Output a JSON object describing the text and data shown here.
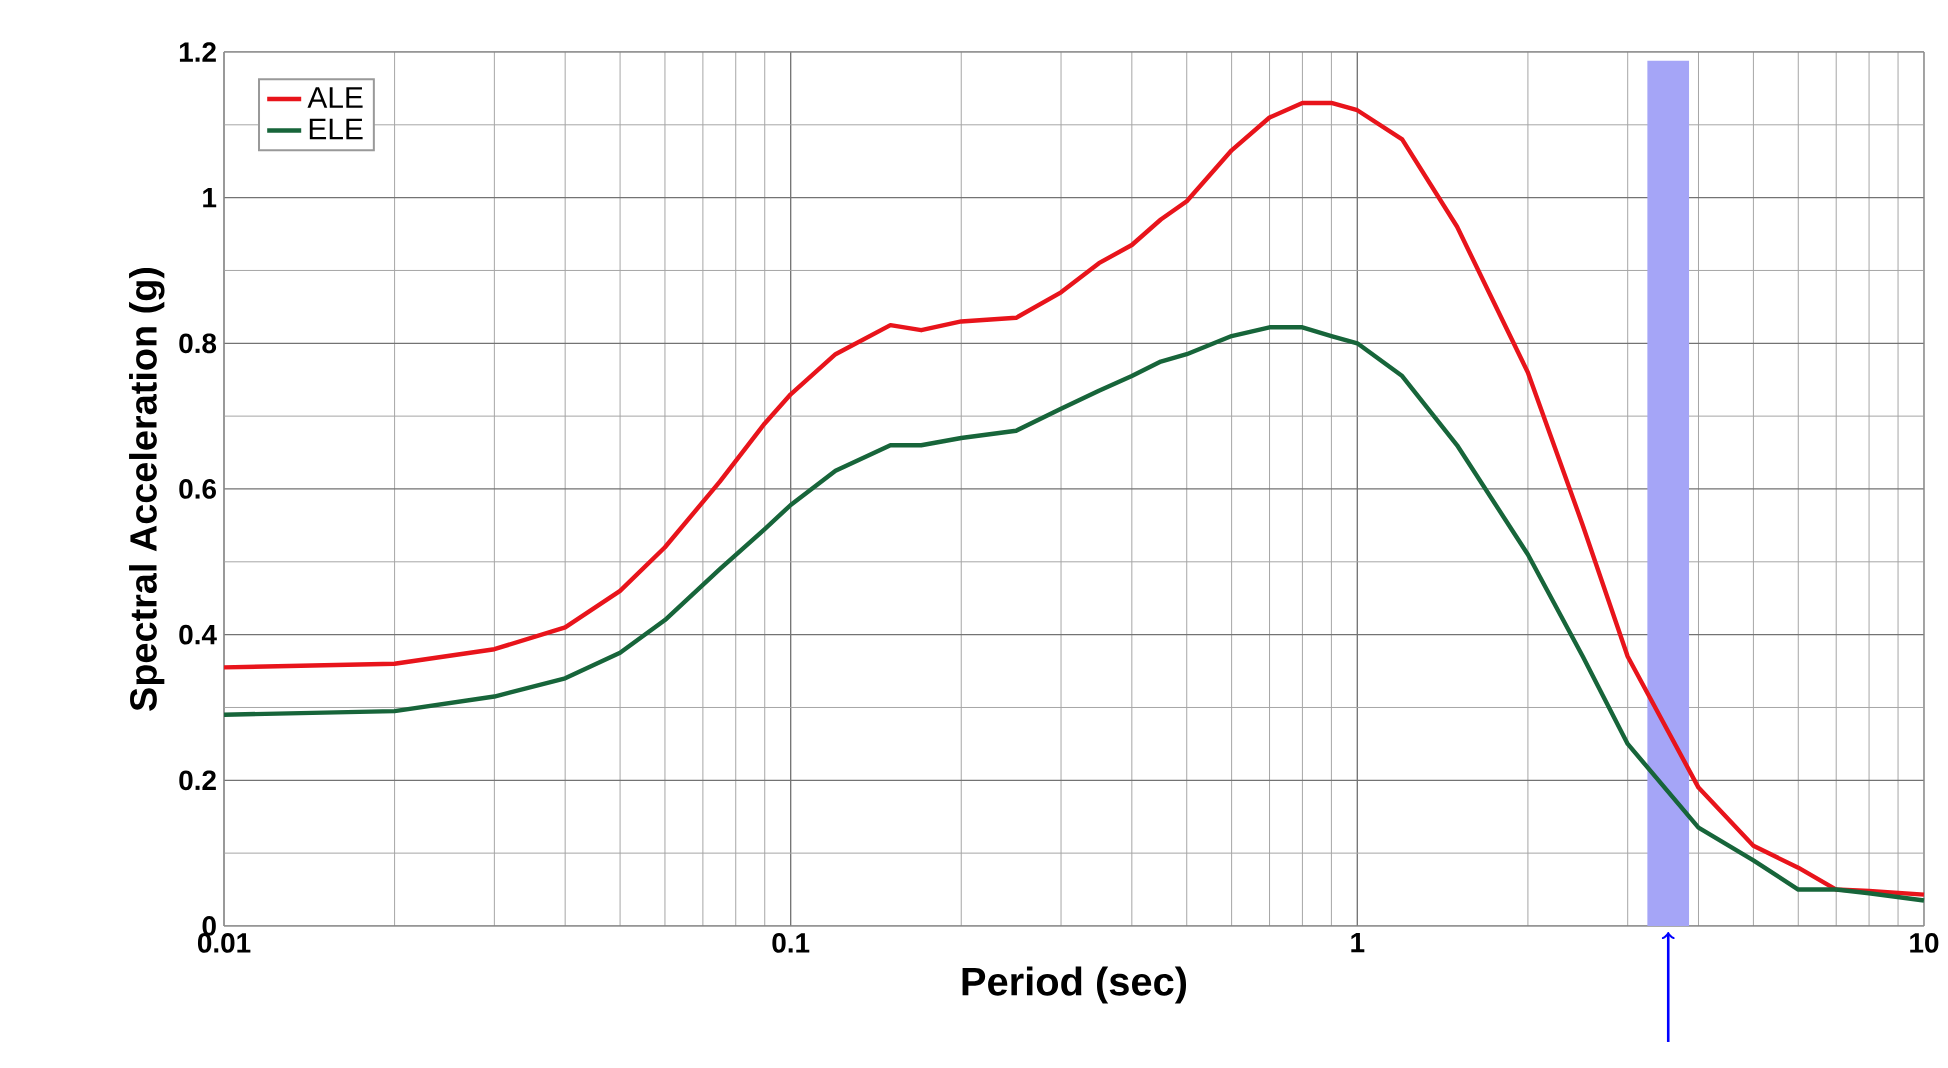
{
  "chart_data": {
    "type": "line",
    "xlabel": "Period (sec)",
    "ylabel": "Spectral Acceleration (g)",
    "log": "x",
    "grid": true,
    "legend": "top left",
    "line_style": "solid",
    "marker": "none",
    "xlim": [
      0.01,
      10
    ],
    "xticks": [
      0.01,
      0.1,
      1,
      10
    ],
    "ylim": [
      0,
      1.2
    ],
    "yticks": [
      0,
      0.2,
      0.4,
      0.6,
      0.8,
      1,
      1.2
    ],
    "x": [
      0.01,
      0.02,
      0.03,
      0.04,
      0.05,
      0.06,
      0.075,
      0.09,
      0.1,
      0.12,
      0.15,
      0.17,
      0.2,
      0.25,
      0.3,
      0.35,
      0.4,
      0.45,
      0.5,
      0.6,
      0.7,
      0.8,
      0.9,
      1.0,
      1.2,
      1.5,
      2,
      2.5,
      3,
      4,
      5,
      6,
      7,
      8,
      10
    ],
    "series": [
      {
        "name": "ALE",
        "color": "#e8141b",
        "values": [
          0.355,
          0.36,
          0.38,
          0.41,
          0.46,
          0.52,
          0.61,
          0.69,
          0.73,
          0.785,
          0.825,
          0.818,
          0.83,
          0.835,
          0.87,
          0.91,
          0.935,
          0.97,
          0.995,
          1.065,
          1.11,
          1.13,
          1.13,
          1.12,
          1.08,
          0.96,
          0.76,
          0.55,
          0.37,
          0.19,
          0.11,
          0.08,
          0.05,
          0.048,
          0.043
        ]
      },
      {
        "name": "ELE",
        "color": "#17653a",
        "values": [
          0.29,
          0.295,
          0.315,
          0.34,
          0.375,
          0.42,
          0.49,
          0.545,
          0.578,
          0.625,
          0.66,
          0.66,
          0.67,
          0.68,
          0.71,
          0.735,
          0.755,
          0.775,
          0.785,
          0.81,
          0.822,
          0.822,
          0.81,
          0.8,
          0.755,
          0.66,
          0.51,
          0.37,
          0.25,
          0.135,
          0.09,
          0.05,
          0.05,
          0.045,
          0.035
        ]
      }
    ],
    "bands": [
      {
        "axis": "x",
        "from": 3.25,
        "to": 3.85,
        "color": "#a5a5f7"
      }
    ]
  }
}
